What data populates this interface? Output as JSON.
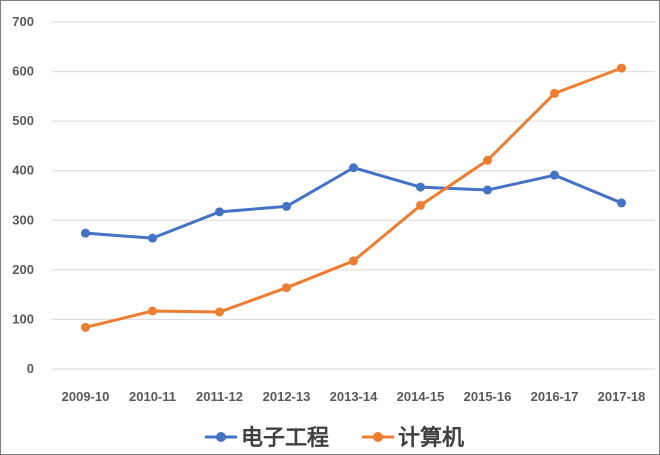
{
  "chart_data": {
    "type": "line",
    "title": "",
    "xlabel": "",
    "ylabel": "",
    "categories": [
      "2009-10",
      "2010-11",
      "2011-12",
      "2012-13",
      "2013-14",
      "2014-15",
      "2015-16",
      "2016-17",
      "2017-18"
    ],
    "ylim": [
      0,
      700
    ],
    "yticks": [
      0,
      100,
      200,
      300,
      400,
      500,
      600,
      700
    ],
    "grid": true,
    "legend": "bottom",
    "series": [
      {
        "name": "电子工程",
        "color": "#4472c4",
        "values": [
          274,
          264,
          317,
          328,
          406,
          367,
          361,
          391,
          335
        ]
      },
      {
        "name": "计算机",
        "color": "#ed7d31",
        "values": [
          84,
          117,
          115,
          164,
          218,
          330,
          421,
          556,
          607
        ]
      }
    ]
  }
}
